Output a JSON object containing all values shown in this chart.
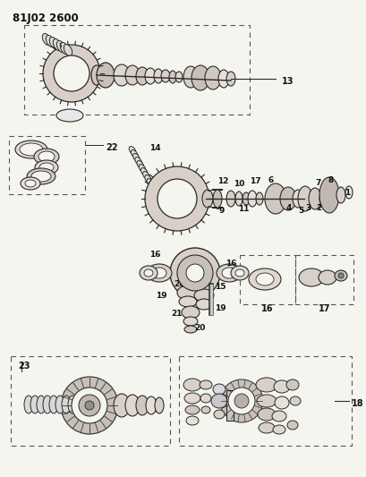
{
  "title": "81J02 2600",
  "bg_color": "#f5f5f0",
  "line_color": "#2a2a2a",
  "text_color": "#111111",
  "fig_w": 4.09,
  "fig_h": 5.33,
  "dpi": 100
}
